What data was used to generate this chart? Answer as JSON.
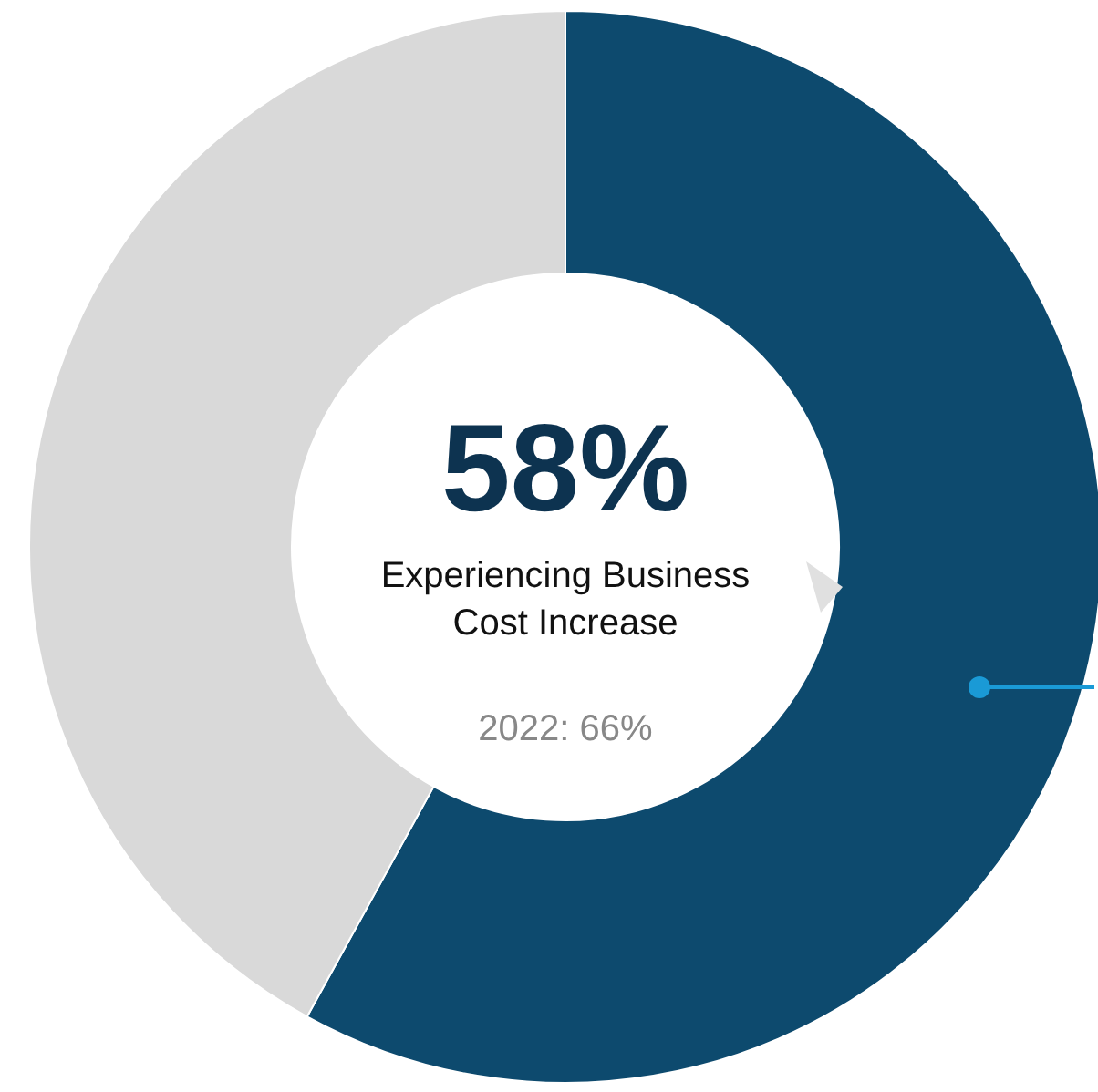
{
  "chart_data": {
    "type": "donut",
    "categories": [
      null,
      null
    ],
    "values": [
      58,
      42
    ],
    "colors": [
      "#0d4a6e",
      "#d9d9d9"
    ],
    "value_labels": [
      "58%",
      null
    ],
    "annotations": [
      "Experiencing Business Cost Increase",
      "2022: 66%"
    ]
  }
}
